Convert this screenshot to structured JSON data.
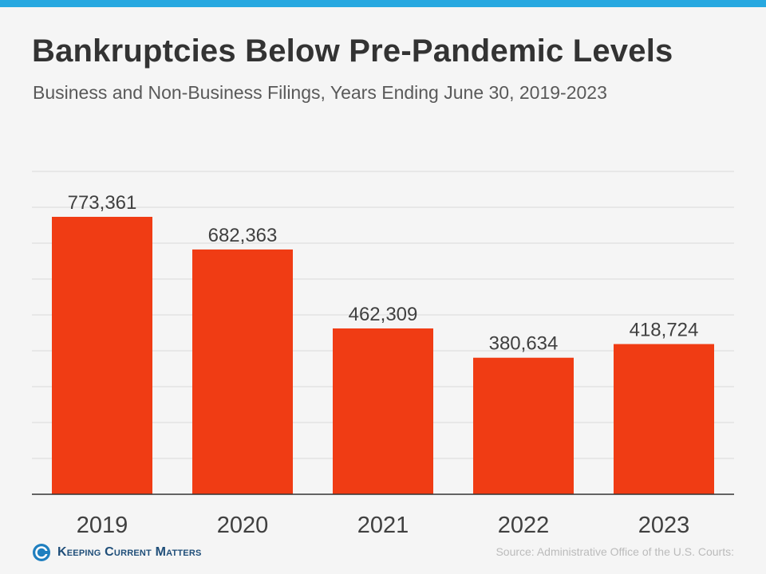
{
  "header": {
    "title": "Bankruptcies Below Pre-Pandemic Levels",
    "subtitle": "Business and Non-Business Filings, Years Ending June 30, 2019-2023"
  },
  "footer": {
    "brand": "Keeping Current Matters",
    "source": "Source: Administrative Office of the U.S. Courts:"
  },
  "colors": {
    "accent_bar": "#27a8e0",
    "bar": "#f03c14",
    "brand_blue": "#1f7fbf"
  },
  "icons": {
    "logo": "kcm-logo-icon"
  },
  "chart_data": {
    "type": "bar",
    "categories": [
      "2019",
      "2020",
      "2021",
      "2022",
      "2023"
    ],
    "values": [
      773361,
      682363,
      462309,
      380634,
      418724
    ],
    "value_labels": [
      "773,361",
      "682,363",
      "462,309",
      "380,634",
      "418,724"
    ],
    "title": "Bankruptcies Below Pre-Pandemic Levels",
    "subtitle": "Business and Non-Business Filings, Years Ending June 30, 2019-2023",
    "xlabel": "",
    "ylabel": "",
    "ylim": [
      0,
      900000
    ],
    "grid": true,
    "legend": "none"
  }
}
